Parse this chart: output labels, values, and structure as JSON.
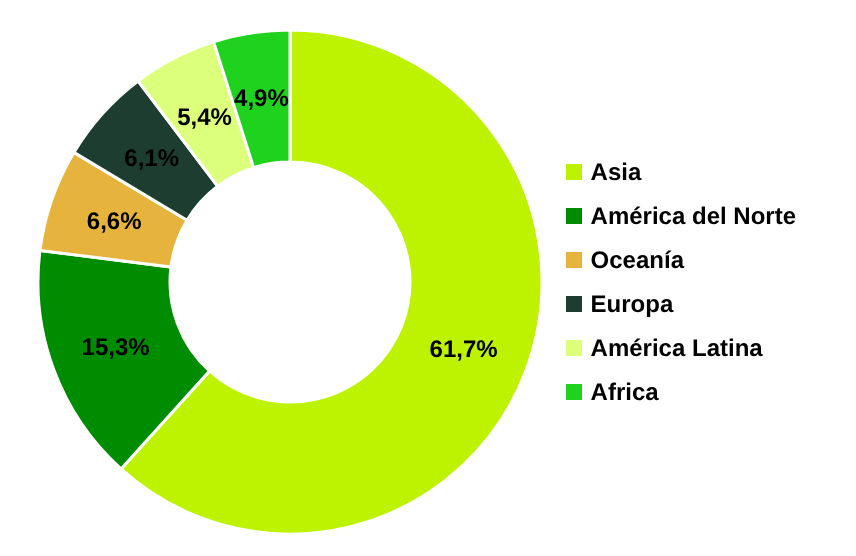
{
  "chart_data": {
    "type": "donut",
    "categories": [
      "Asia",
      "América del Norte",
      "Oceanía",
      "Europa",
      "América Latina",
      "Africa"
    ],
    "values": [
      61.7,
      15.3,
      6.6,
      6.1,
      5.4,
      4.9
    ],
    "value_labels": [
      "61,7%",
      "15,3%",
      "6,6%",
      "6,1%",
      "5,4%",
      "4,9%"
    ],
    "colors": [
      "#bdf200",
      "#008c00",
      "#e6b43c",
      "#1c3d30",
      "#dcff7c",
      "#1ed21e"
    ],
    "legend": "right"
  }
}
